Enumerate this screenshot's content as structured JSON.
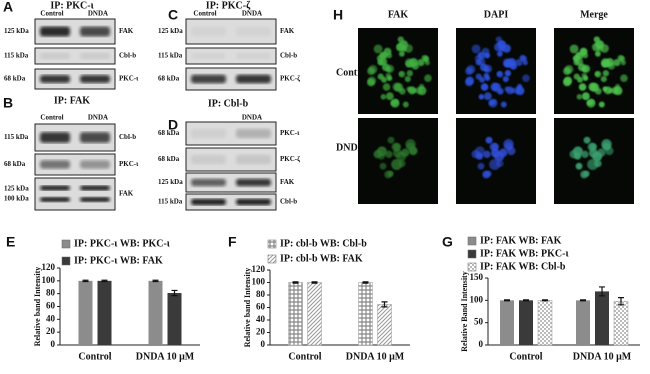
{
  "blots": [
    {
      "panel": "A",
      "title": "IP: PKC-ι",
      "columns": [
        "Control",
        "DNDA"
      ],
      "rows": [
        {
          "sizes": [
            "125 kDa"
          ],
          "protein": "FAK"
        },
        {
          "sizes": [
            "115 kDa"
          ],
          "protein": "Cbl-b"
        },
        {
          "sizes": [
            "68 kDa"
          ],
          "protein": "PKC-ι"
        }
      ]
    },
    {
      "panel": "B",
      "title": "IP: FAK",
      "columns": [
        "Control",
        "DNDA"
      ],
      "rows": [
        {
          "sizes": [
            "115 kDa"
          ],
          "protein": "Cbl-b"
        },
        {
          "sizes": [
            "68 kDa"
          ],
          "protein": "PKC-ι"
        },
        {
          "sizes": [
            "125 kDa",
            "100 kDa"
          ],
          "protein": "FAK"
        }
      ]
    },
    {
      "panel": "C",
      "title": "IP: PKC-ζ",
      "columns": [
        "Control",
        "DNDA"
      ],
      "rows": [
        {
          "sizes": [
            "125 kDa"
          ],
          "protein": "FAK"
        },
        {
          "sizes": [
            "115 kDa"
          ],
          "protein": "Cbl-b"
        },
        {
          "sizes": [
            "68 kDa"
          ],
          "protein": "PKC-ζ"
        }
      ]
    },
    {
      "panel": "D",
      "title": "IP: Cbl-b",
      "columns": [
        "DNDA"
      ],
      "rows": [
        {
          "sizes": [
            "68 kDa"
          ],
          "protein": "PKC-ι"
        },
        {
          "sizes": [
            "68 kDa"
          ],
          "protein": "PKC-ζ"
        },
        {
          "sizes": [
            "125 kDa"
          ],
          "protein": "FAK"
        },
        {
          "sizes": [
            "115 kDa"
          ],
          "protein": "Cbl-b"
        }
      ]
    }
  ],
  "microscopy": {
    "panel": "H",
    "columns": [
      "FAK",
      "DAPI",
      "Merge"
    ],
    "rows": [
      "Control",
      "DNDA"
    ]
  },
  "chart_data": [
    {
      "type": "bar",
      "panel": "E",
      "y_label": "Relative band Intensity",
      "categories": [
        "Control",
        "DNDA 10 μM"
      ],
      "ylim": [
        0,
        120
      ],
      "yticks": [
        0,
        20,
        40,
        60,
        80,
        100,
        120
      ],
      "series": [
        {
          "name": "IP: PKC-ι WB: PKC-ι",
          "color": "#8c8c8c",
          "hatch": "solid",
          "values": [
            100,
            100
          ],
          "errors": [
            1,
            1
          ]
        },
        {
          "name": "IP: PKC-ι WB: FAK",
          "color": "#3a3a3a",
          "hatch": "solid",
          "values": [
            100,
            81
          ],
          "errors": [
            1,
            4
          ]
        }
      ]
    },
    {
      "type": "bar",
      "panel": "F",
      "y_label": "Relative band Intensity",
      "categories": [
        "Control",
        "DNDA 10 μM"
      ],
      "ylim": [
        0,
        120
      ],
      "yticks": [
        0,
        20,
        40,
        60,
        80,
        100,
        120
      ],
      "series": [
        {
          "name": "IP: cbl-b WB: Cbl-b",
          "color": "#888888",
          "hatch": "crosshatch",
          "values": [
            100,
            100
          ],
          "errors": [
            1,
            1
          ]
        },
        {
          "name": "IP: cbl-b WB: FAK",
          "color": "#999999",
          "hatch": "diagonal",
          "values": [
            100,
            65
          ],
          "errors": [
            1,
            4
          ]
        }
      ]
    },
    {
      "type": "bar",
      "panel": "G",
      "y_label": "Relative Band Intensity",
      "categories": [
        "Control",
        "DNDA 10 μM"
      ],
      "ylim": [
        0,
        150
      ],
      "yticks": [
        0,
        50,
        100,
        150
      ],
      "series": [
        {
          "name": "IP: FAK WB: FAK",
          "color": "#8c8c8c",
          "hatch": "solid",
          "values": [
            100,
            100
          ],
          "errors": [
            1,
            1
          ]
        },
        {
          "name": "IP: FAK WB: PKC-ι",
          "color": "#3a3a3a",
          "hatch": "solid",
          "values": [
            100,
            120
          ],
          "errors": [
            1,
            10
          ]
        },
        {
          "name": "IP: FAK WB: Cbl-b",
          "color": "#bbbbbb",
          "hatch": "checker",
          "values": [
            100,
            98
          ],
          "errors": [
            1,
            8
          ]
        }
      ]
    }
  ]
}
